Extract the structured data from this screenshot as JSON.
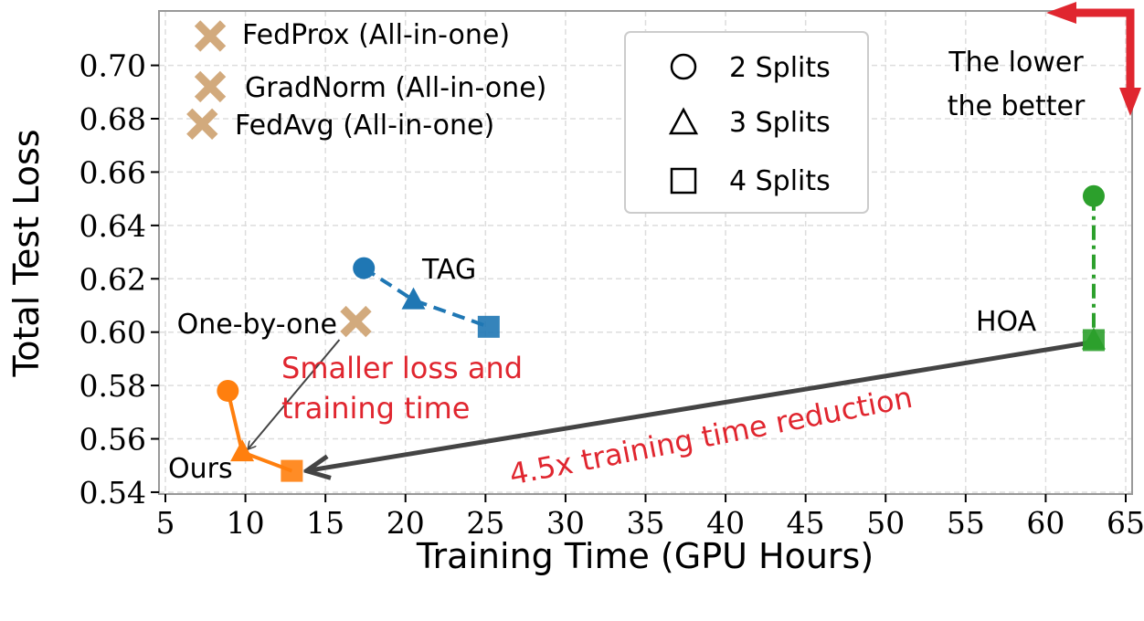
{
  "chart_data": {
    "type": "scatter",
    "xlabel": "Training Time (GPU Hours)",
    "ylabel": "Total Test Loss",
    "xlim": [
      4.6,
      65.4
    ],
    "ylim": [
      0.5393,
      0.7204
    ],
    "xticks": [
      5,
      10,
      15,
      20,
      25,
      30,
      35,
      40,
      45,
      50,
      55,
      60,
      65
    ],
    "yticks": [
      "0.54",
      "0.56",
      "0.58",
      "0.60",
      "0.62",
      "0.64",
      "0.66",
      "0.68",
      "0.70"
    ],
    "grid": true,
    "series": [
      {
        "name": "TAG",
        "color": "#1f77b4",
        "line": "dashed",
        "points": [
          [
            17.4,
            0.624,
            "circle"
          ],
          [
            20.5,
            0.612,
            "triangle"
          ],
          [
            25.2,
            0.602,
            "square"
          ]
        ]
      },
      {
        "name": "HOA",
        "color": "#2ca02c",
        "line": "dashdot",
        "points": [
          [
            63.0,
            0.651,
            "circle"
          ],
          [
            63.0,
            0.597,
            "triangle"
          ],
          [
            63.0,
            0.597,
            "square"
          ]
        ]
      },
      {
        "name": "Ours",
        "color": "#ff7f0e",
        "line": "solid",
        "points": [
          [
            8.9,
            0.578,
            "circle"
          ],
          [
            9.8,
            0.555,
            "triangle"
          ],
          [
            12.9,
            0.548,
            "square"
          ]
        ]
      }
    ],
    "baselines": [
      {
        "name": "FedProx (All-in-one)",
        "color": "#d2aa7d",
        "x": 7.8,
        "y": 0.711
      },
      {
        "name": "GradNorm (All-in-one)",
        "color": "#d2aa7d",
        "x": 7.8,
        "y": 0.692
      },
      {
        "name": "FedAvg (All-in-one)",
        "color": "#d2aa7d",
        "x": 7.3,
        "y": 0.678
      },
      {
        "name": "One-by-one",
        "color": "#d2aa7d",
        "x": 16.9,
        "y": 0.604
      }
    ],
    "legend": {
      "placement": "top-center",
      "entries": [
        {
          "label": "2 Splits",
          "marker": "circle"
        },
        {
          "label": "3 Splits",
          "marker": "triangle"
        },
        {
          "label": "4 Splits",
          "marker": "square"
        }
      ]
    },
    "annotations": {
      "better": [
        "The lower",
        "the better"
      ],
      "smaller": [
        "Smaller loss and",
        "training time"
      ],
      "reduction": "4.5x training time reduction"
    },
    "accent_color": "#e0262f"
  }
}
